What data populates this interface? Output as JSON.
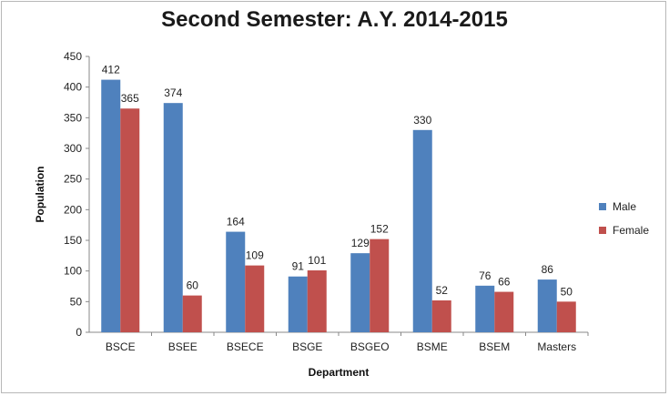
{
  "chart_data": {
    "type": "bar",
    "title": "Second Semester: A.Y. 2014-2015",
    "xlabel": "Department",
    "ylabel": "Population",
    "ylim": [
      0,
      450
    ],
    "yticks": [
      0,
      50,
      100,
      150,
      200,
      250,
      300,
      350,
      400,
      450
    ],
    "categories": [
      "BSCE",
      "BSEE",
      "BSECE",
      "BSGE",
      "BSGEO",
      "BSME",
      "BSEM",
      "Masters"
    ],
    "series": [
      {
        "name": "Male",
        "color": "#4f81bd",
        "values": [
          412,
          374,
          164,
          91,
          129,
          330,
          76,
          86
        ]
      },
      {
        "name": "Female",
        "color": "#c0504d",
        "values": [
          365,
          60,
          109,
          101,
          152,
          52,
          66,
          50
        ]
      }
    ],
    "grid": false,
    "legend_position": "right"
  }
}
